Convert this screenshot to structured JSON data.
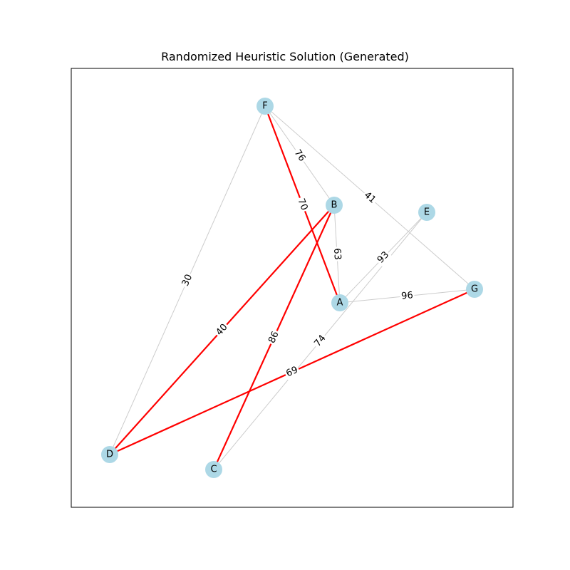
{
  "title": "Randomized Heuristic Solution (Generated)",
  "colors": {
    "node_fill": "#add8e6",
    "edge_default": "#cccccc",
    "edge_highlight": "#ff0000",
    "frame": "#000000"
  },
  "nodes": [
    {
      "id": "A"
    },
    {
      "id": "B"
    },
    {
      "id": "C"
    },
    {
      "id": "D"
    },
    {
      "id": "E"
    },
    {
      "id": "F"
    },
    {
      "id": "G"
    }
  ],
  "edges": [
    {
      "from": "F",
      "to": "D",
      "weight": "30",
      "highlight": false
    },
    {
      "from": "F",
      "to": "B",
      "weight": "76",
      "highlight": false
    },
    {
      "from": "F",
      "to": "G",
      "weight": "41",
      "highlight": false
    },
    {
      "from": "B",
      "to": "A",
      "weight": "63",
      "highlight": false
    },
    {
      "from": "E",
      "to": "A",
      "weight": "93",
      "highlight": false
    },
    {
      "from": "A",
      "to": "G",
      "weight": "96",
      "highlight": false
    },
    {
      "from": "E",
      "to": "C",
      "weight": "74",
      "highlight": false
    },
    {
      "from": "F",
      "to": "A",
      "weight": "70",
      "highlight": true
    },
    {
      "from": "B",
      "to": "D",
      "weight": "40",
      "highlight": true
    },
    {
      "from": "B",
      "to": "C",
      "weight": "86",
      "highlight": true
    },
    {
      "from": "G",
      "to": "D",
      "weight": "69",
      "highlight": true
    }
  ]
}
